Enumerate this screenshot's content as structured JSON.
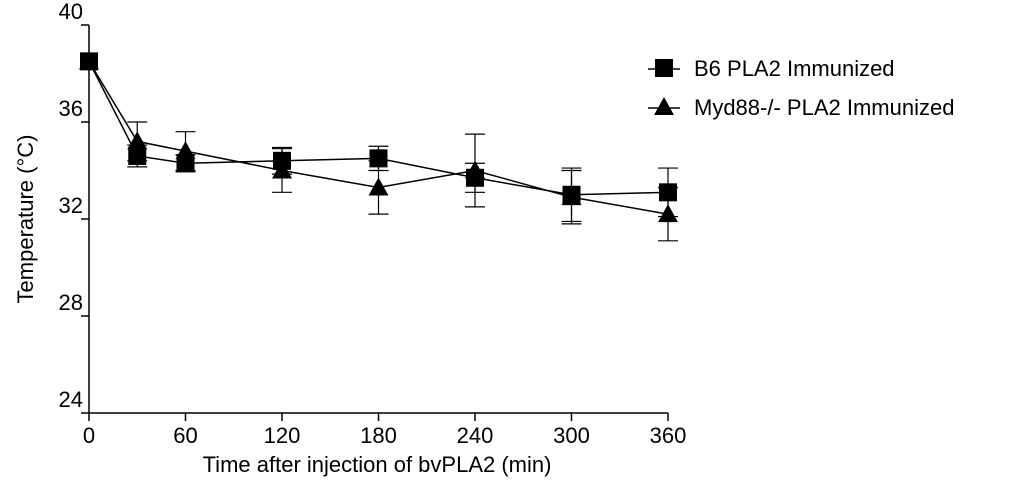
{
  "chart_data": {
    "type": "line",
    "title": "",
    "xlabel": "Time after injection of bvPLA2 (min)",
    "ylabel": "Temperature (°C)",
    "xlim": [
      0,
      360
    ],
    "ylim": [
      24,
      40
    ],
    "xticks": [
      0,
      60,
      120,
      180,
      240,
      300,
      360
    ],
    "yticks": [
      24,
      28,
      32,
      36,
      40
    ],
    "grid": false,
    "legend_position": "top-right",
    "series": [
      {
        "name": "B6 PLA2 Immunized",
        "marker": "square",
        "color": "#000000",
        "x": [
          0,
          30,
          60,
          120,
          180,
          240,
          300,
          360
        ],
        "y": [
          38.5,
          34.6,
          34.3,
          34.4,
          34.5,
          33.7,
          33.0,
          33.1
        ],
        "err": [
          0.0,
          0.45,
          0.35,
          0.55,
          0.5,
          0.6,
          1.1,
          1.0
        ]
      },
      {
        "name": "Myd88-/- PLA2 Immunized",
        "marker": "triangle",
        "color": "#000000",
        "x": [
          0,
          30,
          60,
          120,
          180,
          240,
          300,
          360
        ],
        "y": [
          38.5,
          35.2,
          34.8,
          34.0,
          33.3,
          34.0,
          32.9,
          32.2
        ],
        "err": [
          0.0,
          0.8,
          0.8,
          0.9,
          1.1,
          1.5,
          1.1,
          1.1
        ]
      }
    ]
  }
}
